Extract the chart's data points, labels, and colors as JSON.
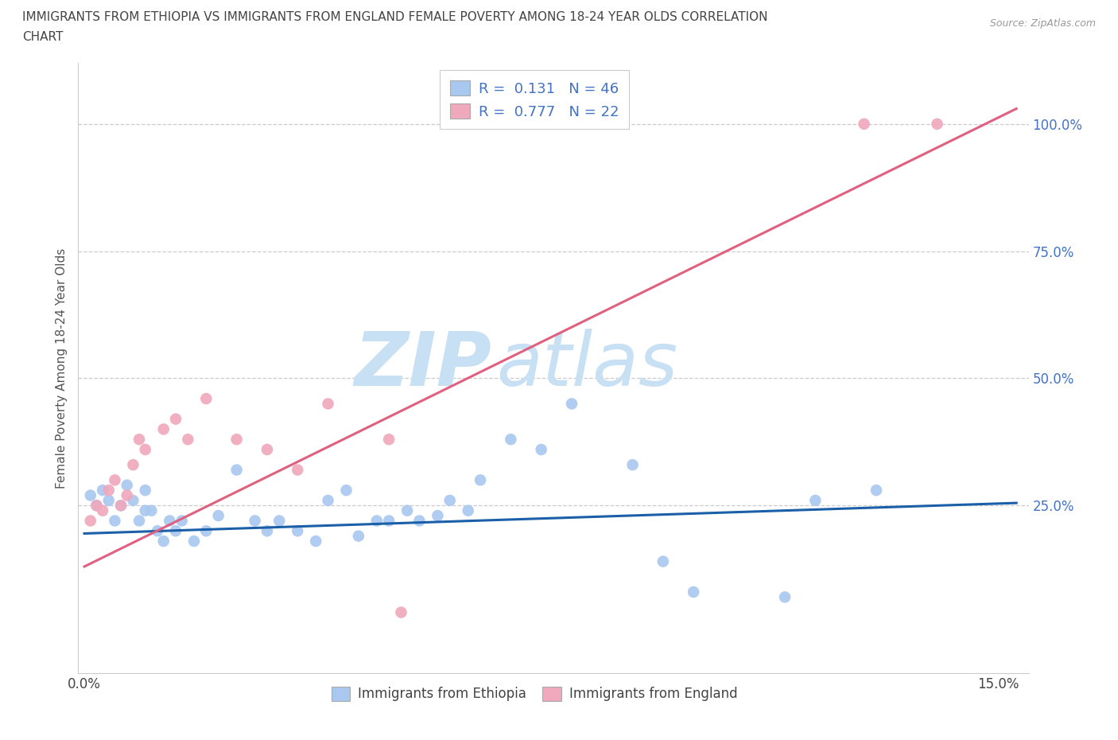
{
  "title_line1": "IMMIGRANTS FROM ETHIOPIA VS IMMIGRANTS FROM ENGLAND FEMALE POVERTY AMONG 18-24 YEAR OLDS CORRELATION",
  "title_line2": "CHART",
  "source": "Source: ZipAtlas.com",
  "ylabel": "Female Poverty Among 18-24 Year Olds",
  "xlim": [
    -0.001,
    0.155
  ],
  "ylim": [
    -0.08,
    1.12
  ],
  "xtick_positions": [
    0.0,
    0.03,
    0.06,
    0.09,
    0.12,
    0.15
  ],
  "xtick_labels": [
    "0.0%",
    "",
    "",
    "",
    "",
    "15.0%"
  ],
  "ytick_vals": [
    1.0,
    0.75,
    0.5,
    0.25
  ],
  "ytick_labels": [
    "100.0%",
    "75.0%",
    "50.0%",
    "25.0%"
  ],
  "R_ethiopia": 0.131,
  "N_ethiopia": 46,
  "R_england": 0.777,
  "N_england": 22,
  "color_ethiopia": "#a8c8f0",
  "color_england": "#f0a8bc",
  "line_color_ethiopia": "#1a5fa8",
  "line_color_england": "#e06080",
  "watermark_zip": "ZIP",
  "watermark_atlas": "atlas",
  "watermark_color": "#c8e0f4",
  "legend_color": "#4472c4",
  "ethiopia_x": [
    0.001,
    0.002,
    0.003,
    0.004,
    0.005,
    0.006,
    0.007,
    0.008,
    0.009,
    0.01,
    0.01,
    0.011,
    0.012,
    0.013,
    0.014,
    0.015,
    0.016,
    0.018,
    0.02,
    0.022,
    0.025,
    0.028,
    0.03,
    0.032,
    0.035,
    0.038,
    0.04,
    0.043,
    0.045,
    0.048,
    0.05,
    0.053,
    0.055,
    0.058,
    0.06,
    0.063,
    0.065,
    0.07,
    0.075,
    0.08,
    0.09,
    0.095,
    0.1,
    0.115,
    0.12,
    0.13
  ],
  "ethiopia_y": [
    0.27,
    0.25,
    0.28,
    0.26,
    0.22,
    0.25,
    0.29,
    0.26,
    0.22,
    0.24,
    0.28,
    0.24,
    0.2,
    0.18,
    0.22,
    0.2,
    0.22,
    0.18,
    0.2,
    0.23,
    0.32,
    0.22,
    0.2,
    0.22,
    0.2,
    0.18,
    0.26,
    0.28,
    0.19,
    0.22,
    0.22,
    0.24,
    0.22,
    0.23,
    0.26,
    0.24,
    0.3,
    0.38,
    0.36,
    0.45,
    0.33,
    0.14,
    0.08,
    0.07,
    0.26,
    0.28
  ],
  "england_x": [
    0.001,
    0.002,
    0.003,
    0.004,
    0.005,
    0.006,
    0.007,
    0.008,
    0.009,
    0.01,
    0.013,
    0.015,
    0.017,
    0.02,
    0.025,
    0.03,
    0.035,
    0.04,
    0.05,
    0.052,
    0.128,
    0.14
  ],
  "england_y": [
    0.22,
    0.25,
    0.24,
    0.28,
    0.3,
    0.25,
    0.27,
    0.33,
    0.38,
    0.36,
    0.4,
    0.42,
    0.38,
    0.46,
    0.38,
    0.36,
    0.32,
    0.45,
    0.38,
    0.04,
    1.0,
    1.0
  ],
  "blue_line_y0": 0.195,
  "blue_line_y1": 0.255,
  "pink_line_y0": 0.13,
  "pink_line_y1": 1.03
}
